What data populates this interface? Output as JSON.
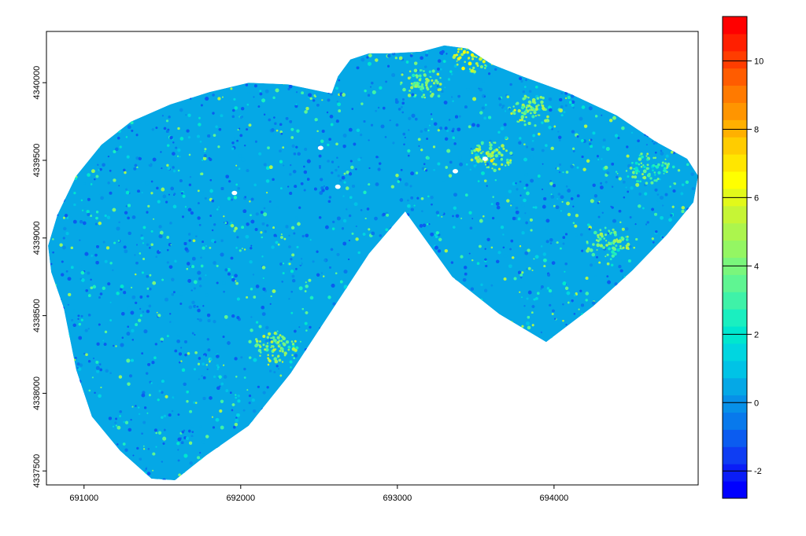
{
  "chart_data": {
    "type": "heatmap",
    "title": "",
    "xlabel": "",
    "ylabel": "",
    "xlim": [
      690760,
      694920
    ],
    "ylim": [
      4337410,
      4340330
    ],
    "x_ticks": [
      {
        "value": 691000,
        "label": "691000"
      },
      {
        "value": 692000,
        "label": "692000"
      },
      {
        "value": 693000,
        "label": "693000"
      },
      {
        "value": 694000,
        "label": "694000"
      }
    ],
    "y_ticks": [
      {
        "value": 4337500,
        "label": "4337500"
      },
      {
        "value": 4338000,
        "label": "4338000"
      },
      {
        "value": 4338500,
        "label": "4338500"
      },
      {
        "value": 4339000,
        "label": "4339000"
      },
      {
        "value": 4339500,
        "label": "4339500"
      },
      {
        "value": 4340000,
        "label": "4340000"
      }
    ],
    "legend": {
      "placement": "right",
      "min": -2.8,
      "max": 11.3,
      "ticks": [
        {
          "value": -2,
          "label": "-2"
        },
        {
          "value": 0,
          "label": "0"
        },
        {
          "value": 2,
          "label": "2"
        },
        {
          "value": 4,
          "label": "4"
        },
        {
          "value": 6,
          "label": "6"
        },
        {
          "value": 8,
          "label": "8"
        },
        {
          "value": 10,
          "label": "10"
        }
      ],
      "colors": [
        "#0000ff",
        "#0a1df7",
        "#0e3df3",
        "#0b5cf0",
        "#0879ec",
        "#0790e8",
        "#05a8e6",
        "#00c3e6",
        "#00d6e0",
        "#00e6cf",
        "#1aefc0",
        "#3ff2a8",
        "#5ff592",
        "#7af67c",
        "#94f663",
        "#acf54d",
        "#c6f535",
        "#e2f91a",
        "#ffff00",
        "#ffe600",
        "#ffcc00",
        "#ffb000",
        "#ff9500",
        "#ff7a00",
        "#ff5c00",
        "#ff3d00",
        "#ff1f00",
        "#ff0000"
      ]
    },
    "region_outline": [
      [
        690770,
        4338950
      ],
      [
        690830,
        4339150
      ],
      [
        690950,
        4339400
      ],
      [
        691110,
        4339600
      ],
      [
        691300,
        4339750
      ],
      [
        691550,
        4339860
      ],
      [
        691800,
        4339940
      ],
      [
        692050,
        4340000
      ],
      [
        692300,
        4339990
      ],
      [
        692580,
        4339930
      ],
      [
        692620,
        4340040
      ],
      [
        692700,
        4340150
      ],
      [
        692820,
        4340190
      ],
      [
        692950,
        4340190
      ],
      [
        693150,
        4340200
      ],
      [
        693300,
        4340240
      ],
      [
        693450,
        4340220
      ],
      [
        693600,
        4340120
      ],
      [
        693800,
        4340040
      ],
      [
        694100,
        4339930
      ],
      [
        694400,
        4339790
      ],
      [
        694650,
        4339620
      ],
      [
        694850,
        4339510
      ],
      [
        694920,
        4339400
      ],
      [
        694890,
        4339230
      ],
      [
        694720,
        4339020
      ],
      [
        694500,
        4338790
      ],
      [
        694250,
        4338560
      ],
      [
        693950,
        4338330
      ],
      [
        693650,
        4338510
      ],
      [
        693350,
        4338750
      ],
      [
        693050,
        4339170
      ],
      [
        692820,
        4338900
      ],
      [
        692560,
        4338500
      ],
      [
        692320,
        4338130
      ],
      [
        692050,
        4337790
      ],
      [
        691780,
        4337600
      ],
      [
        691580,
        4337440
      ],
      [
        691430,
        4337450
      ],
      [
        691230,
        4337630
      ],
      [
        691050,
        4337850
      ],
      [
        690950,
        4338150
      ],
      [
        690870,
        4338550
      ],
      [
        690790,
        4338780
      ]
    ],
    "dominant_values": {
      "min": -1.2,
      "typical": 1.0,
      "max_observed": 7.5
    },
    "hotspots": [
      {
        "x": 693500,
        "y": 4340170,
        "value": 6.5
      },
      {
        "x": 693860,
        "y": 4339820,
        "value": 5.5
      },
      {
        "x": 693150,
        "y": 4340000,
        "value": 5.0
      },
      {
        "x": 694350,
        "y": 4338960,
        "value": 5.0
      },
      {
        "x": 692220,
        "y": 4338300,
        "value": 5.5
      },
      {
        "x": 694600,
        "y": 4339450,
        "value": 4.5
      },
      {
        "x": 693600,
        "y": 4339530,
        "value": 5.5
      }
    ],
    "lows": [
      {
        "x": 692450,
        "y": 4339400,
        "value": -1.0
      },
      {
        "x": 692950,
        "y": 4339750,
        "value": -0.8
      },
      {
        "x": 691700,
        "y": 4338500,
        "value": -0.5
      }
    ],
    "holes": [
      {
        "x": 692510,
        "y": 4339580
      },
      {
        "x": 692620,
        "y": 4339330
      },
      {
        "x": 691960,
        "y": 4339290
      },
      {
        "x": 693370,
        "y": 4339430
      },
      {
        "x": 693560,
        "y": 4339510
      }
    ],
    "grid": false
  }
}
